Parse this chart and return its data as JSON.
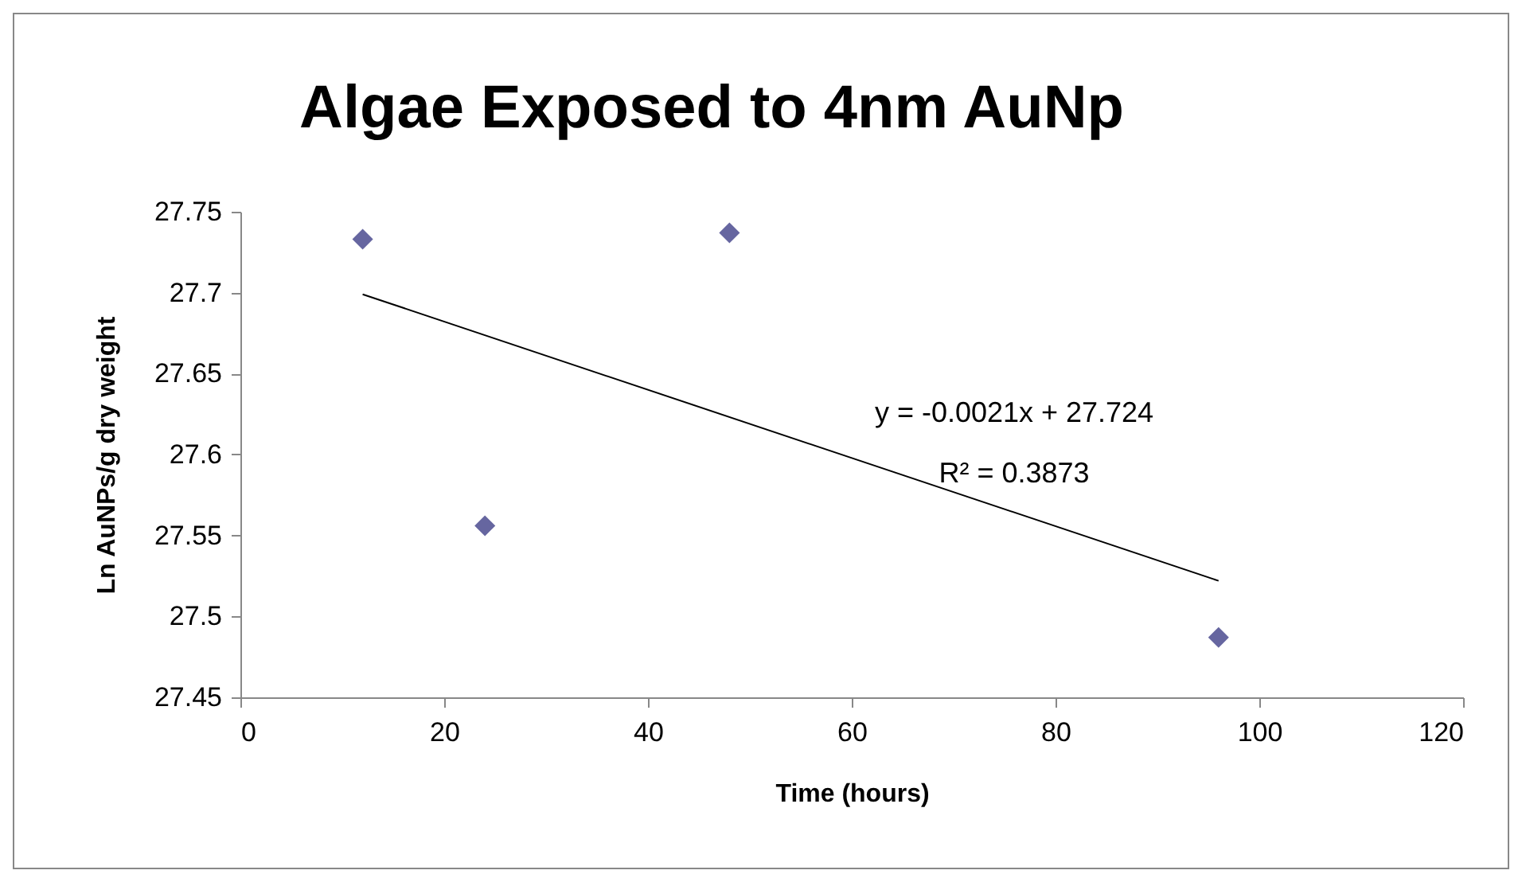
{
  "chart_data": {
    "type": "scatter",
    "title": "Algae Exposed to 4nm AuNp",
    "xlabel": "Time (hours)",
    "ylabel": "Ln AuNPs/g dry weight",
    "series": [
      {
        "color": "#6666a0",
        "x": [
          12,
          24,
          48,
          96
        ],
        "values": [
          27.733,
          27.556,
          27.737,
          27.487
        ],
        "marker": "diamond"
      },
      {
        "type": "line",
        "color": "#000000",
        "x": [
          12,
          96
        ],
        "values": [
          27.699,
          27.522
        ],
        "marker": "none",
        "line_style": "solid"
      }
    ],
    "annotations": [
      "y = -0.0021x + 27.724",
      "R² = 0.3873"
    ],
    "xlim": [
      0,
      120
    ],
    "xticks": [
      0,
      20,
      40,
      60,
      80,
      100,
      120
    ],
    "ylim": [
      27.45,
      27.75
    ],
    "yticks": [
      27.45,
      27.5,
      27.55,
      27.6,
      27.65,
      27.7,
      27.75
    ],
    "grid": false
  }
}
